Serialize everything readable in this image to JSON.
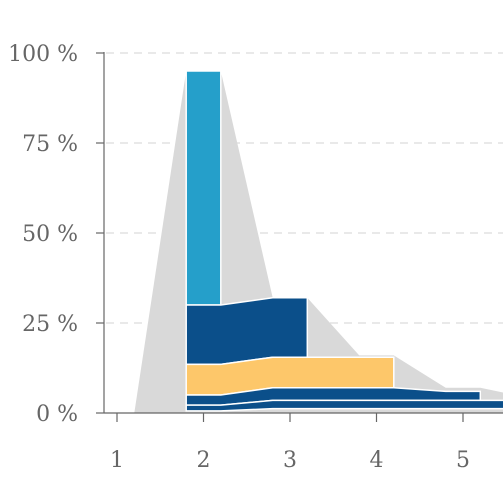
{
  "chart_data": {
    "type": "area",
    "title": "",
    "xlabel": "",
    "ylabel": "",
    "x_ticks": [
      1,
      2,
      3,
      4,
      5
    ],
    "y_ticks": [
      "0 %",
      "25 %",
      "50 %",
      "75 %",
      "100 %"
    ],
    "y_range": [
      0,
      100
    ],
    "grid": true,
    "colors": {
      "background_flow": "#d9d9d9",
      "light_blue": "#259fca",
      "dark_blue": "#0b4f8a",
      "yellow": "#fdc76a",
      "bar_outline": "#ffffff"
    },
    "background_flow": [
      {
        "x": 1.0,
        "y": 0
      },
      {
        "x": 1.2,
        "y": 0
      },
      {
        "x": 1.8,
        "y": 95
      },
      {
        "x": 2.2,
        "y": 95
      },
      {
        "x": 2.8,
        "y": 32
      },
      {
        "x": 3.2,
        "y": 32
      },
      {
        "x": 3.8,
        "y": 16
      },
      {
        "x": 4.2,
        "y": 16
      },
      {
        "x": 4.8,
        "y": 7
      },
      {
        "x": 5.2,
        "y": 7
      },
      {
        "x": 5.8,
        "y": 4
      }
    ],
    "bands": [
      {
        "color": "light_blue",
        "points": [
          {
            "x": 1.8,
            "lower": 30,
            "upper": 95
          },
          {
            "x": 2.2,
            "lower": 30,
            "upper": 95
          }
        ]
      },
      {
        "color": "dark_blue",
        "points": [
          {
            "x": 1.8,
            "lower": 13.5,
            "upper": 30
          },
          {
            "x": 2.2,
            "lower": 13.5,
            "upper": 30
          },
          {
            "x": 2.8,
            "lower": 15.5,
            "upper": 32
          },
          {
            "x": 3.2,
            "lower": 15.5,
            "upper": 32
          }
        ]
      },
      {
        "color": "yellow",
        "points": [
          {
            "x": 1.8,
            "lower": 5,
            "upper": 13.5
          },
          {
            "x": 2.2,
            "lower": 5,
            "upper": 13.5
          },
          {
            "x": 2.8,
            "lower": 7,
            "upper": 15.5
          },
          {
            "x": 3.2,
            "lower": 7,
            "upper": 15.5
          },
          {
            "x": 3.8,
            "lower": 7,
            "upper": 15.5
          },
          {
            "x": 4.2,
            "lower": 7,
            "upper": 15.5
          }
        ]
      },
      {
        "color": "dark_blue",
        "points": [
          {
            "x": 1.8,
            "lower": 2.2,
            "upper": 5
          },
          {
            "x": 2.2,
            "lower": 2.2,
            "upper": 5
          },
          {
            "x": 2.8,
            "lower": 3.5,
            "upper": 7
          },
          {
            "x": 3.2,
            "lower": 3.5,
            "upper": 7
          },
          {
            "x": 3.8,
            "lower": 3.5,
            "upper": 7
          },
          {
            "x": 4.2,
            "lower": 3.5,
            "upper": 7
          },
          {
            "x": 4.8,
            "lower": 3.5,
            "upper": 6
          },
          {
            "x": 5.2,
            "lower": 3.5,
            "upper": 6
          }
        ]
      },
      {
        "color": "dark_blue",
        "points": [
          {
            "x": 1.8,
            "lower": 0.6,
            "upper": 2.2
          },
          {
            "x": 2.2,
            "lower": 0.6,
            "upper": 2.2
          },
          {
            "x": 2.8,
            "lower": 1.2,
            "upper": 3.5
          },
          {
            "x": 3.2,
            "lower": 1.2,
            "upper": 3.5
          },
          {
            "x": 3.8,
            "lower": 1.2,
            "upper": 3.5
          },
          {
            "x": 4.2,
            "lower": 1.2,
            "upper": 3.5
          },
          {
            "x": 4.8,
            "lower": 1.2,
            "upper": 3.5
          },
          {
            "x": 5.2,
            "lower": 1.2,
            "upper": 3.5
          },
          {
            "x": 5.8,
            "lower": 1.2,
            "upper": 3.5
          }
        ]
      }
    ]
  }
}
